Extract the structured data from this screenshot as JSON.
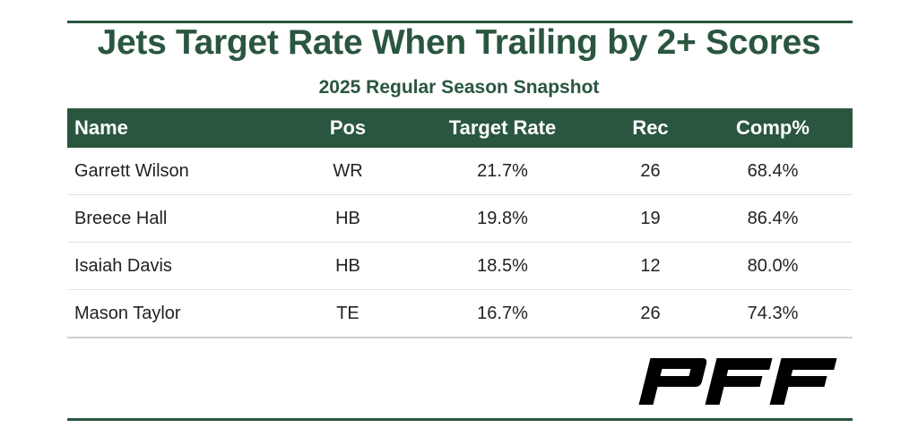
{
  "chart_data": {
    "type": "table",
    "title": "Jets Target Rate When Trailing by 2+ Scores",
    "subtitle": "2025 Regular Season Snapshot",
    "columns": [
      "Name",
      "Pos",
      "Target Rate",
      "Rec",
      "Comp%"
    ],
    "rows": [
      [
        "Garrett Wilson",
        "WR",
        "21.7%",
        "26",
        "68.4%"
      ],
      [
        "Breece Hall",
        "HB",
        "19.8%",
        "19",
        "86.4%"
      ],
      [
        "Isaiah Davis",
        "HB",
        "18.5%",
        "12",
        "80.0%"
      ],
      [
        "Mason Taylor",
        "TE",
        "16.7%",
        "26",
        "74.3%"
      ]
    ]
  },
  "logo": "PFF",
  "colors": {
    "accent": "#2a5640",
    "logo": "#000000"
  }
}
